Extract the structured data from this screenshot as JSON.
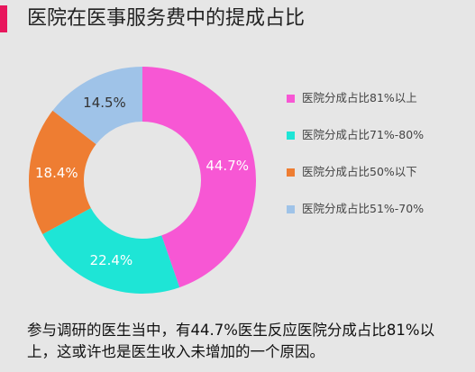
{
  "title": "医院在医事服务费中的提成占比",
  "chart_data": {
    "type": "pie",
    "variant": "donut",
    "categories": [
      "医院分成占比81%以上",
      "医院分成占比71%-80%",
      "医院分成占比50%以下",
      "医院分成占比51%-70%"
    ],
    "values": [
      44.7,
      22.4,
      18.4,
      14.5
    ],
    "value_labels": [
      "44.7%",
      "22.4%",
      "18.4%",
      "14.5%"
    ],
    "colors": [
      "#f757d4",
      "#1ee5d6",
      "#ee7d32",
      "#9fc3e8"
    ],
    "legend_position": "right"
  },
  "note": "参与调研的医生当中，有44.7%医生反应医院分成占比81%以上，这或许也是医生收入未增加的一个原因。"
}
